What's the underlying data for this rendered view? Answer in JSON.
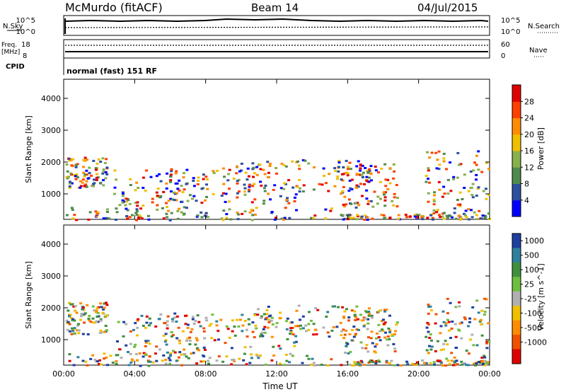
{
  "header": {
    "station": "McMurdo (fitACF)",
    "beam": "Beam 14",
    "date": "04/Jul/2015"
  },
  "top_panels": {
    "nsky_label": "N.Sky",
    "nsky_ticks": [
      "10^5",
      "10^0"
    ],
    "nsearch_label": "N.Search",
    "nsearch_ticks": [
      "10^5",
      "10^0"
    ],
    "freq_label_1": "Freq.",
    "freq_label_2": "[MHz]",
    "freq_ticks": [
      "18",
      "8"
    ],
    "nave_label": "Nave",
    "nave_ticks": [
      "60",
      "0"
    ],
    "cpid_label": "CPID",
    "cpid_text": "normal (fast) 151 RF"
  },
  "colors": {
    "power_scale": [
      "#0000ff",
      "#2c4f9e",
      "#4f8a4f",
      "#88b04b",
      "#f0c000",
      "#ff8c00",
      "#ff4000",
      "#e00000"
    ],
    "velocity_scale": [
      "#1f3fa0",
      "#2f7f9f",
      "#3f8f3f",
      "#6fbf3f",
      "#b0b0b0",
      "#f0c000",
      "#ff8c00",
      "#f05000",
      "#e00000"
    ]
  },
  "chart_data": [
    {
      "type": "heatmap",
      "title": "",
      "xlabel": "",
      "ylabel": "Slant Range [km]",
      "x_ticks": [
        "00:00",
        "04:00",
        "08:00",
        "12:00",
        "16:00",
        "20:00",
        "00:00"
      ],
      "y_ticks": [
        "1000",
        "2000",
        "3000",
        "4000"
      ],
      "ylim": [
        200,
        4600
      ],
      "colorbar_label": "Power [dB]",
      "colorbar_ticks": [
        "4",
        "8",
        "12",
        "16",
        "20",
        "24",
        "28"
      ],
      "clim": [
        0,
        30
      ]
    },
    {
      "type": "heatmap",
      "title": "",
      "xlabel": "Time UT",
      "ylabel": "Slant Range [km]",
      "x_ticks": [
        "00:00",
        "04:00",
        "08:00",
        "12:00",
        "16:00",
        "20:00",
        "00:00"
      ],
      "y_ticks": [
        "1000",
        "2000",
        "3000",
        "4000"
      ],
      "ylim": [
        200,
        4600
      ],
      "colorbar_label": "Velocity [m s^-1]",
      "colorbar_ticks": [
        "1000",
        "500",
        "100",
        "25",
        "-25",
        "-100",
        "-500",
        "-1000"
      ],
      "clim": [
        -1000,
        1000
      ]
    }
  ]
}
